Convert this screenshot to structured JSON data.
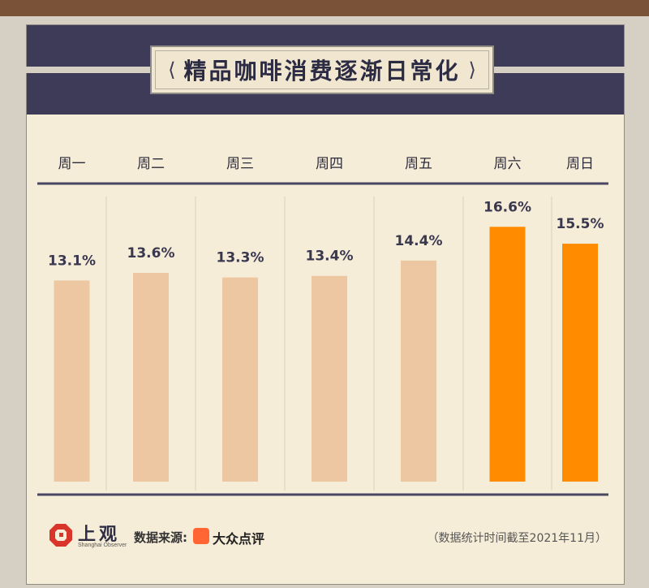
{
  "title": "精品咖啡消费逐渐日常化",
  "chart_data": {
    "type": "bar",
    "categories": [
      "周一",
      "周二",
      "周三",
      "周四",
      "周五",
      "周六",
      "周日"
    ],
    "values": [
      13.1,
      13.6,
      13.3,
      13.4,
      14.4,
      16.6,
      15.5
    ],
    "value_labels": [
      "13.1%",
      "13.6%",
      "13.3%",
      "13.4%",
      "14.4%",
      "16.6%",
      "15.5%"
    ],
    "unit": "%",
    "highlight": [
      false,
      false,
      false,
      false,
      false,
      true,
      true
    ],
    "colors": {
      "normal": "#edc7a2",
      "highlight": "#ff8c00"
    },
    "grid": false,
    "legend": "none"
  },
  "footer": {
    "logo_cn": "上观",
    "logo_en": "Shanghai Observer",
    "source_label": "数据来源:",
    "source_name": "大众点评",
    "note": "（数据统计时间截至2021年11月）"
  },
  "colors": {
    "header_band": "#3d3b58",
    "top_strip": "#7a5238",
    "panel": "#f6edd9",
    "axis_line": "#4a4762"
  }
}
